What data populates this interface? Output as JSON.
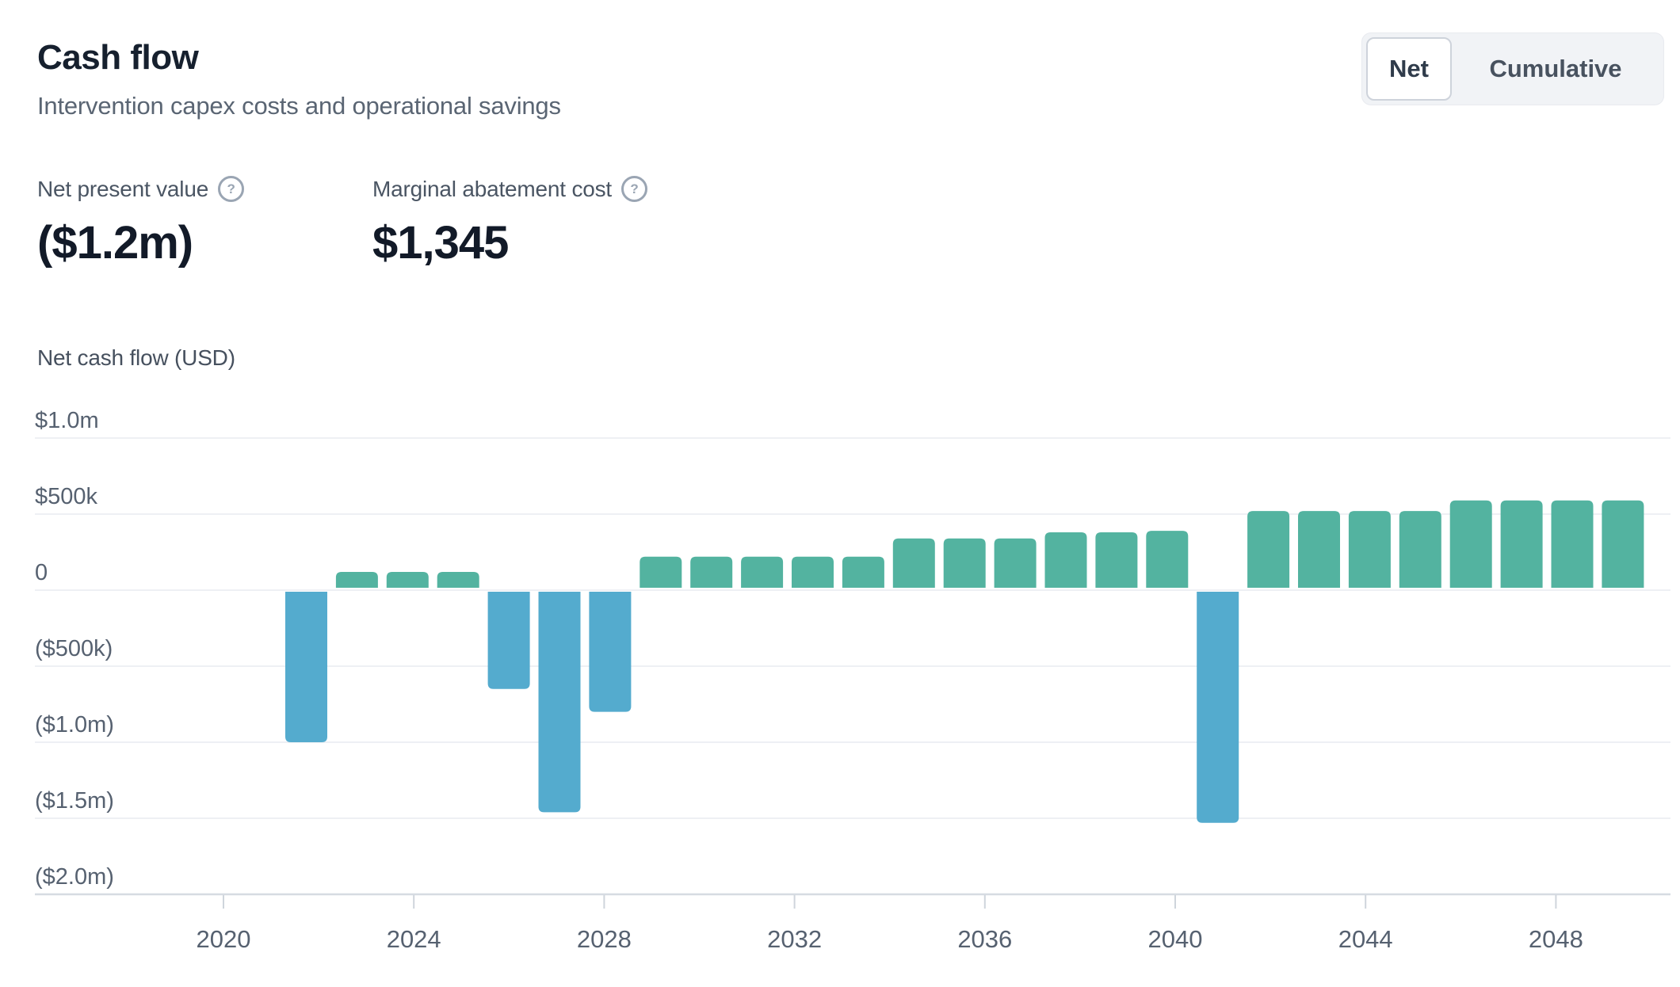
{
  "header": {
    "title": "Cash flow",
    "subtitle": "Intervention capex costs and operational savings"
  },
  "toggle": {
    "options": [
      {
        "label": "Net",
        "selected": true
      },
      {
        "label": "Cumulative",
        "selected": false
      }
    ]
  },
  "kpis": [
    {
      "label": "Net present value",
      "help_glyph": "?",
      "value": "($1.2m)"
    },
    {
      "label": "Marginal abatement cost",
      "help_glyph": "?",
      "value": "$1,345"
    }
  ],
  "chart_data": {
    "type": "bar",
    "title": "Net cash flow (USD)",
    "unit": "USD thousands",
    "x": [
      2021,
      2022,
      2023,
      2024,
      2025,
      2026,
      2027,
      2028,
      2029,
      2030,
      2031,
      2032,
      2033,
      2034,
      2035,
      2036,
      2037,
      2038,
      2039,
      2040,
      2041,
      2042,
      2043,
      2044,
      2045,
      2046,
      2047
    ],
    "values": [
      -1000,
      120,
      120,
      120,
      -650,
      -1460,
      -800,
      220,
      220,
      220,
      220,
      220,
      340,
      340,
      340,
      380,
      380,
      390,
      -1530,
      520,
      520,
      520,
      520,
      590,
      590,
      590,
      590
    ],
    "ylim": [
      -2000,
      1000
    ],
    "grid": "horizontal",
    "legend": "none",
    "y_ticks": [
      {
        "label": "$1.0m",
        "value": 1000
      },
      {
        "label": "$500k",
        "value": 500
      },
      {
        "label": "0",
        "value": 0
      },
      {
        "label": "($500k)",
        "value": -500
      },
      {
        "label": "($1.0m)",
        "value": -1000
      },
      {
        "label": "($1.5m)",
        "value": -1500
      },
      {
        "label": "($2.0m)",
        "value": -2000
      }
    ],
    "x_ticks": [
      2020,
      2024,
      2028,
      2032,
      2036,
      2040,
      2044,
      2048
    ],
    "colors": {
      "positive": "#53B3A0",
      "negative": "#54ABCE",
      "gridline": "#eef0f4",
      "axis_line": "#d6dbe2",
      "tick_mark": "#cfd5dc",
      "tick_text": "#566170"
    }
  }
}
